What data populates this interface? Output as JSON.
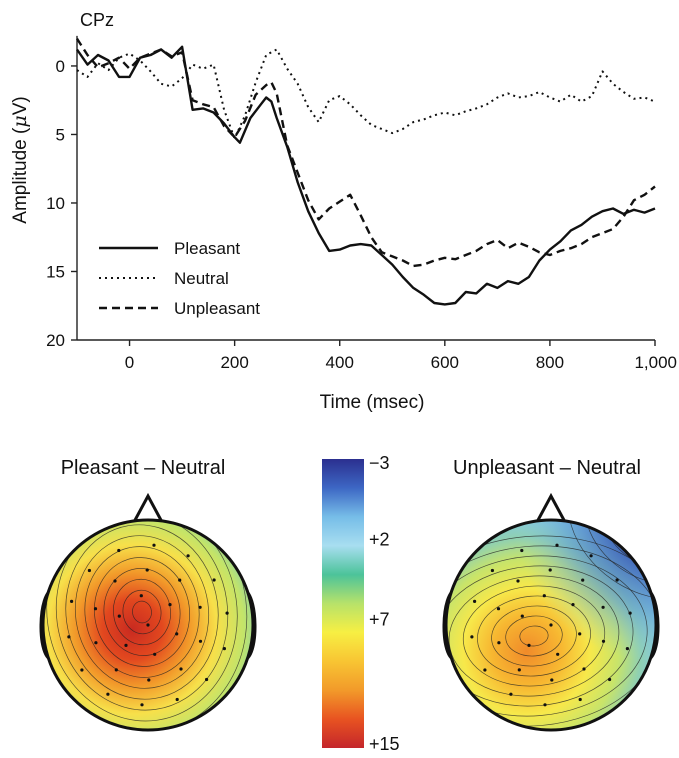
{
  "chart_data": [
    {
      "type": "line",
      "title": "CPz",
      "xlabel": "Time (msec)",
      "ylabel_main": "Amplitude (",
      "ylabel_unit_symbol": "μ",
      "ylabel_unit_rest": "V)",
      "xlim": [
        -100,
        1000
      ],
      "ylim": [
        -3.5,
        20
      ],
      "y_inverted": true,
      "grid": false,
      "legend_position": "bottom-left",
      "x_ticks": [
        0,
        200,
        400,
        600,
        800,
        1000
      ],
      "x_tick_labels": [
        "0",
        "200",
        "400",
        "600",
        "800",
        "1,000"
      ],
      "y_ticks": [
        0,
        5,
        10,
        15,
        20
      ],
      "y_tick_labels": [
        "0",
        "5",
        "10",
        "15",
        "20"
      ],
      "series": [
        {
          "name": "Pleasant",
          "style": "solid",
          "x": [
            -100,
            -80,
            -60,
            -40,
            -20,
            0,
            20,
            40,
            60,
            80,
            100,
            120,
            140,
            160,
            180,
            200,
            210,
            230,
            250,
            260,
            270,
            280,
            300,
            320,
            340,
            360,
            380,
            400,
            420,
            440,
            460,
            480,
            500,
            520,
            540,
            560,
            580,
            600,
            620,
            640,
            660,
            680,
            700,
            720,
            740,
            760,
            780,
            800,
            820,
            840,
            860,
            880,
            900,
            920,
            940,
            960,
            980,
            1000
          ],
          "y": [
            -1.2,
            -0.1,
            -0.8,
            -0.4,
            0.8,
            0.8,
            -0.6,
            -0.8,
            -1.2,
            -0.6,
            -1.4,
            3.2,
            3.1,
            3.4,
            4.2,
            5.2,
            5.6,
            3.8,
            2.8,
            2.3,
            2.6,
            3.8,
            5.9,
            8.5,
            10.6,
            12.2,
            13.5,
            13.4,
            13.1,
            13.0,
            13.1,
            13.8,
            14.5,
            15.4,
            16.2,
            16.7,
            17.3,
            17.4,
            17.3,
            16.5,
            16.6,
            15.9,
            16.2,
            15.7,
            15.9,
            15.4,
            14.2,
            13.4,
            12.8,
            12.0,
            11.6,
            11.0,
            10.6,
            10.4,
            10.8,
            10.5,
            10.7,
            10.4
          ]
        },
        {
          "name": "Neutral",
          "style": "dotted",
          "x": [
            -100,
            -80,
            -60,
            -40,
            -20,
            0,
            20,
            40,
            60,
            80,
            100,
            120,
            140,
            160,
            180,
            200,
            220,
            240,
            260,
            280,
            300,
            320,
            340,
            360,
            380,
            400,
            420,
            440,
            460,
            480,
            500,
            520,
            540,
            560,
            580,
            600,
            620,
            640,
            660,
            680,
            700,
            720,
            740,
            760,
            780,
            800,
            820,
            840,
            860,
            880,
            900,
            920,
            940,
            960,
            980,
            1000
          ],
          "y": [
            0.3,
            0.8,
            -0.2,
            0.3,
            -0.6,
            -0.9,
            -0.4,
            0.4,
            1.3,
            1.5,
            0.9,
            -0.1,
            0.2,
            -0.1,
            3.2,
            5.3,
            3.6,
            1.2,
            -0.8,
            -1.2,
            0.2,
            1.3,
            3.0,
            4.1,
            2.5,
            2.2,
            2.8,
            3.6,
            4.3,
            4.6,
            4.9,
            4.6,
            4.1,
            3.9,
            3.6,
            3.4,
            3.6,
            3.3,
            3.1,
            2.8,
            2.3,
            2.0,
            2.3,
            2.2,
            1.9,
            2.3,
            2.6,
            2.1,
            2.6,
            2.2,
            0.4,
            1.3,
            1.9,
            2.4,
            2.3,
            2.6
          ]
        },
        {
          "name": "Unpleasant",
          "style": "dashed",
          "x": [
            -100,
            -80,
            -60,
            -40,
            -20,
            0,
            20,
            40,
            60,
            80,
            100,
            120,
            140,
            160,
            180,
            200,
            220,
            240,
            260,
            270,
            280,
            300,
            320,
            340,
            360,
            380,
            400,
            420,
            440,
            460,
            480,
            500,
            520,
            540,
            560,
            580,
            600,
            620,
            640,
            660,
            680,
            700,
            720,
            740,
            760,
            780,
            800,
            820,
            840,
            860,
            880,
            900,
            920,
            940,
            960,
            980,
            1000
          ],
          "y": [
            -2.0,
            -0.8,
            0.1,
            -0.2,
            -0.6,
            0.2,
            -0.6,
            -0.9,
            -1.2,
            -0.7,
            -1.0,
            2.5,
            2.8,
            3.0,
            4.4,
            5.2,
            4.0,
            2.1,
            1.4,
            1.2,
            2.0,
            5.8,
            7.8,
            9.8,
            11.2,
            10.4,
            9.9,
            9.4,
            10.9,
            12.5,
            13.6,
            13.9,
            14.2,
            14.6,
            14.5,
            14.2,
            14.0,
            14.1,
            13.8,
            13.5,
            13.0,
            12.7,
            13.3,
            12.9,
            13.2,
            13.6,
            13.8,
            13.5,
            13.3,
            13.0,
            12.5,
            12.2,
            11.9,
            11.0,
            9.8,
            9.4,
            8.8
          ]
        }
      ]
    },
    {
      "type": "heatmap",
      "title": "Pleasant – Neutral",
      "description_level": "topographic scalp map",
      "peak_value": 15
    },
    {
      "type": "heatmap",
      "title": "Unpleasant – Neutral",
      "peak_value": 10
    }
  ],
  "colorbar": {
    "labels": [
      "−3",
      "+2",
      "+7",
      "+15"
    ],
    "values": [
      -3,
      2,
      7,
      15
    ],
    "stops": [
      "#2b2f8f",
      "#3d67c4",
      "#76bde8",
      "#a8def0",
      "#4cc39a",
      "#b7e26a",
      "#f7ef43",
      "#f8c533",
      "#f29a2a",
      "#e85321",
      "#c4262b"
    ]
  }
}
